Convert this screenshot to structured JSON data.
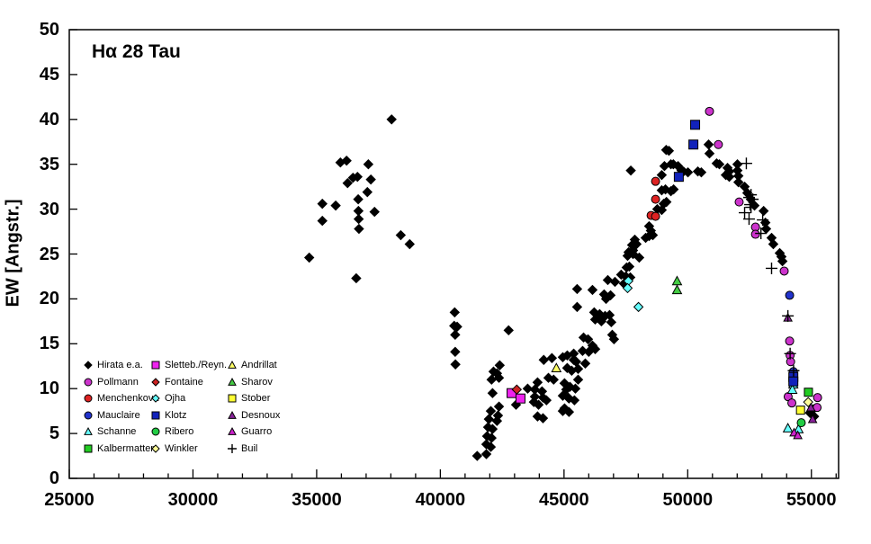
{
  "chart_data": {
    "type": "scatter",
    "title": "Hα 28 Tau",
    "xlabel": "",
    "ylabel": "EW [Angstr.]",
    "xlim": [
      25000,
      56100
    ],
    "ylim": [
      0,
      50
    ],
    "x_ticks": [
      25000,
      30000,
      35000,
      40000,
      45000,
      50000,
      55000
    ],
    "y_ticks": [
      0,
      5,
      10,
      15,
      20,
      25,
      30,
      35,
      40,
      45,
      50
    ],
    "x_minor_step": 1000,
    "x_minor_max": 56000,
    "grid": false,
    "legend_position": "inside-lower-left",
    "series": [
      {
        "name": "Hirata e.a.",
        "key": "hirata",
        "marker": "diamond",
        "color": "#000000",
        "size": 5,
        "points": [
          [
            34700,
            24.6
          ],
          [
            35230,
            30.6
          ],
          [
            35230,
            28.7
          ],
          [
            35770,
            30.4
          ],
          [
            35960,
            35.2
          ],
          [
            36210,
            35.4
          ],
          [
            36250,
            32.9
          ],
          [
            36600,
            22.3
          ],
          [
            36470,
            33.5
          ],
          [
            36650,
            33.6
          ],
          [
            36680,
            31.1
          ],
          [
            36690,
            29.8
          ],
          [
            36700,
            28.9
          ],
          [
            36710,
            27.8
          ],
          [
            37050,
            31.9
          ],
          [
            37090,
            35.0
          ],
          [
            37190,
            33.3
          ],
          [
            37340,
            29.7
          ],
          [
            38030,
            40.0
          ],
          [
            38400,
            27.1
          ],
          [
            38760,
            26.1
          ],
          [
            40580,
            18.5
          ],
          [
            40560,
            17.0
          ],
          [
            40680,
            16.9
          ],
          [
            40600,
            16.0
          ],
          [
            40600,
            14.1
          ],
          [
            40610,
            12.7
          ],
          [
            41490,
            2.5
          ],
          [
            41860,
            2.7
          ],
          [
            42040,
            3.5
          ],
          [
            41860,
            3.8
          ],
          [
            42070,
            4.5
          ],
          [
            41890,
            4.7
          ],
          [
            42110,
            5.5
          ],
          [
            41930,
            5.7
          ],
          [
            42290,
            6.4
          ],
          [
            41960,
            6.6
          ],
          [
            42330,
            7.0
          ],
          [
            42040,
            7.5
          ],
          [
            42370,
            8.0
          ],
          [
            42110,
            9.5
          ],
          [
            42070,
            11.0
          ],
          [
            42370,
            11.2
          ],
          [
            42150,
            11.9
          ],
          [
            42290,
            11.7
          ],
          [
            42400,
            12.6
          ],
          [
            42760,
            16.5
          ],
          [
            43060,
            8.2
          ],
          [
            43530,
            10.0
          ],
          [
            43820,
            9.1
          ],
          [
            43930,
            10.7
          ],
          [
            43780,
            8.5
          ],
          [
            43970,
            8.2
          ],
          [
            43820,
            9.9
          ],
          [
            44110,
            9.7
          ],
          [
            44150,
            9.0
          ],
          [
            44150,
            6.7
          ],
          [
            43930,
            6.9
          ],
          [
            44290,
            8.7
          ],
          [
            44370,
            11.2
          ],
          [
            44580,
            11.0
          ],
          [
            44510,
            13.4
          ],
          [
            44180,
            13.2
          ],
          [
            44950,
            13.5
          ],
          [
            45130,
            13.7
          ],
          [
            45390,
            13.2
          ],
          [
            45390,
            13.9
          ],
          [
            45750,
            14.2
          ],
          [
            46000,
            14.1
          ],
          [
            45020,
            10.6
          ],
          [
            45090,
            9.9
          ],
          [
            45170,
            9.0
          ],
          [
            44950,
            7.5
          ],
          [
            45020,
            7.8
          ],
          [
            45490,
            13.0
          ],
          [
            45860,
            12.8
          ],
          [
            45130,
            12.3
          ],
          [
            45310,
            12.0
          ],
          [
            45570,
            12.2
          ],
          [
            45570,
            11.0
          ],
          [
            45240,
            10.2
          ],
          [
            45460,
            10.0
          ],
          [
            44950,
            9.2
          ],
          [
            45200,
            8.9
          ],
          [
            45420,
            8.7
          ],
          [
            45020,
            7.7
          ],
          [
            45200,
            7.4
          ],
          [
            45530,
            21.1
          ],
          [
            46150,
            21.0
          ],
          [
            46620,
            20.5
          ],
          [
            46880,
            20.4
          ],
          [
            46700,
            20.0
          ],
          [
            45530,
            19.1
          ],
          [
            46220,
            18.5
          ],
          [
            46440,
            18.3
          ],
          [
            46660,
            18.1
          ],
          [
            46840,
            18.2
          ],
          [
            46260,
            17.7
          ],
          [
            46510,
            17.5
          ],
          [
            46910,
            17.4
          ],
          [
            45790,
            15.7
          ],
          [
            45970,
            15.5
          ],
          [
            46950,
            16.0
          ],
          [
            47020,
            15.5
          ],
          [
            46150,
            14.8
          ],
          [
            46260,
            14.4
          ],
          [
            46770,
            22.1
          ],
          [
            47060,
            21.9
          ],
          [
            47420,
            21.7
          ],
          [
            47310,
            22.7
          ],
          [
            47500,
            22.5
          ],
          [
            47680,
            22.4
          ],
          [
            47570,
            24.8
          ],
          [
            47610,
            25.2
          ],
          [
            47790,
            25.0
          ],
          [
            48040,
            24.6
          ],
          [
            47640,
            23.6
          ],
          [
            47530,
            23.5
          ],
          [
            47700,
            34.3
          ],
          [
            47860,
            26.6
          ],
          [
            47930,
            26.1
          ],
          [
            47750,
            26.0
          ],
          [
            47790,
            25.4
          ],
          [
            48300,
            26.8
          ],
          [
            48440,
            28.1
          ],
          [
            48510,
            27.6
          ],
          [
            48590,
            27.1
          ],
          [
            48440,
            27.0
          ],
          [
            48770,
            30.0
          ],
          [
            48950,
            29.9
          ],
          [
            49030,
            30.6
          ],
          [
            49140,
            30.8
          ],
          [
            48950,
            32.1
          ],
          [
            49100,
            32.2
          ],
          [
            49430,
            32.2
          ],
          [
            49320,
            32.0
          ],
          [
            48950,
            33.8
          ],
          [
            49060,
            34.8
          ],
          [
            49320,
            35.0
          ],
          [
            49130,
            36.6
          ],
          [
            49240,
            36.5
          ],
          [
            49420,
            35.0
          ],
          [
            49610,
            34.8
          ],
          [
            49750,
            34.3
          ],
          [
            49830,
            34.2
          ],
          [
            50010,
            34.1
          ],
          [
            50410,
            34.2
          ],
          [
            50550,
            34.1
          ],
          [
            50845,
            37.2
          ],
          [
            50880,
            36.2
          ],
          [
            51170,
            35.1
          ],
          [
            51280,
            35.0
          ],
          [
            51540,
            33.8
          ],
          [
            51610,
            34.6
          ],
          [
            51680,
            34.2
          ],
          [
            51680,
            33.6
          ],
          [
            52010,
            35.0
          ],
          [
            52010,
            34.3
          ],
          [
            52050,
            33.7
          ],
          [
            52050,
            33.0
          ],
          [
            52300,
            32.5
          ],
          [
            52410,
            31.8
          ],
          [
            52550,
            31.1
          ],
          [
            52700,
            30.4
          ],
          [
            53070,
            29.8
          ],
          [
            53140,
            28.5
          ],
          [
            53170,
            27.8
          ],
          [
            53390,
            26.8
          ],
          [
            53460,
            26.1
          ],
          [
            53720,
            25.1
          ],
          [
            53790,
            24.7
          ],
          [
            53830,
            24.2
          ],
          [
            55070,
            7.7
          ],
          [
            54940,
            7.3
          ],
          [
            55110,
            6.9
          ]
        ]
      },
      {
        "name": "Pollmann",
        "key": "pollmann",
        "marker": "circle",
        "color": "#CC33CC",
        "size": 4.5,
        "points": [
          [
            50880,
            40.9
          ],
          [
            51240,
            37.2
          ],
          [
            52080,
            30.8
          ],
          [
            52740,
            28.0
          ],
          [
            52740,
            27.2
          ],
          [
            53900,
            23.1
          ],
          [
            54120,
            15.3
          ],
          [
            54140,
            13.7
          ],
          [
            54160,
            13.0
          ],
          [
            54060,
            9.1
          ],
          [
            54210,
            8.4
          ],
          [
            55250,
            9.0
          ],
          [
            55230,
            7.9
          ]
        ]
      },
      {
        "name": "Menchenkova",
        "key": "menchenkova",
        "marker": "circle",
        "color": "#DD2222",
        "size": 4.5,
        "points": [
          [
            48700,
            33.1
          ],
          [
            48700,
            31.1
          ],
          [
            48520,
            29.3
          ],
          [
            48700,
            29.2
          ]
        ]
      },
      {
        "name": "Mauclaire",
        "key": "mauclaire",
        "marker": "circle",
        "color": "#2233CC",
        "size": 4.5,
        "points": [
          [
            54120,
            20.4
          ],
          [
            54270,
            11.9
          ]
        ]
      },
      {
        "name": "Schanne",
        "key": "schanne",
        "marker": "triangle",
        "color": "#66FFFF",
        "size": 5,
        "points": [
          [
            54270,
            10.5
          ],
          [
            54230,
            9.9
          ],
          [
            54050,
            5.6
          ],
          [
            54480,
            5.5
          ]
        ]
      },
      {
        "name": "Kalbermatten",
        "key": "kalbermatten",
        "marker": "square",
        "color": "#22CC22",
        "size": 4.5,
        "points": [
          [
            54880,
            9.6
          ]
        ]
      },
      {
        "name": "Sletteb./Reyn.",
        "key": "sletteb",
        "marker": "square",
        "color": "#EE22EE",
        "size": 5,
        "points": [
          [
            42880,
            9.5
          ],
          [
            43240,
            8.9
          ]
        ]
      },
      {
        "name": "Fontaine",
        "key": "fontaine",
        "marker": "diamond",
        "color": "#CC2222",
        "size": 5,
        "points": [
          [
            43090,
            9.9
          ]
        ]
      },
      {
        "name": "Ojha",
        "key": "ojha",
        "marker": "diamond",
        "color": "#66FFFF",
        "size": 5,
        "points": [
          [
            47600,
            22.0
          ],
          [
            47570,
            21.2
          ],
          [
            48010,
            19.1
          ]
        ]
      },
      {
        "name": "Klotz",
        "key": "klotz",
        "marker": "square",
        "color": "#1122BB",
        "size": 5,
        "points": [
          [
            50300,
            39.4
          ],
          [
            50230,
            37.2
          ],
          [
            49640,
            33.6
          ],
          [
            54270,
            11.3
          ],
          [
            54270,
            10.8
          ]
        ]
      },
      {
        "name": "Ribero",
        "key": "ribero",
        "marker": "circle",
        "color": "#22CC44",
        "size": 4.5,
        "points": [
          [
            54590,
            6.2
          ]
        ]
      },
      {
        "name": "Winkler",
        "key": "winkler",
        "marker": "diamond",
        "color": "#FFFF99",
        "size": 5,
        "points": [
          [
            54870,
            8.5
          ]
        ]
      },
      {
        "name": "Andrillat",
        "key": "andrillat",
        "marker": "triangle",
        "color": "#FFFF66",
        "size": 5,
        "points": [
          [
            44690,
            12.3
          ]
        ]
      },
      {
        "name": "Sharov",
        "key": "sharov",
        "marker": "triangle",
        "color": "#44CC44",
        "size": 5,
        "points": [
          [
            49570,
            22.0
          ],
          [
            49570,
            21.0
          ]
        ]
      },
      {
        "name": "Stober",
        "key": "stober",
        "marker": "square",
        "color": "#FFFF33",
        "size": 4.5,
        "points": [
          [
            54560,
            7.6
          ]
        ]
      },
      {
        "name": "Desnoux",
        "key": "desnoux",
        "marker": "triangle",
        "color": "#882299",
        "size": 4.5,
        "points": [
          [
            54050,
            17.9
          ],
          [
            54980,
            7.9
          ],
          [
            55050,
            6.6
          ]
        ]
      },
      {
        "name": "Guarro",
        "key": "guarro",
        "marker": "triangle",
        "color": "#CC22CC",
        "size": 4.5,
        "points": [
          [
            54300,
            5.1
          ],
          [
            54450,
            4.8
          ]
        ]
      },
      {
        "name": "Buil",
        "key": "buil",
        "marker": "cross",
        "color": "#000000",
        "size": 6.5,
        "points": [
          [
            52370,
            35.1
          ],
          [
            52560,
            31.6
          ],
          [
            52480,
            31.3
          ],
          [
            52630,
            31.1
          ],
          [
            52520,
            30.5
          ],
          [
            52560,
            30.2
          ],
          [
            52300,
            29.6
          ],
          [
            52480,
            28.9
          ],
          [
            53030,
            28.8
          ],
          [
            52960,
            27.3
          ],
          [
            53390,
            23.4
          ],
          [
            54050,
            18.1
          ],
          [
            54140,
            13.9
          ],
          [
            54280,
            12.0
          ]
        ]
      }
    ]
  }
}
